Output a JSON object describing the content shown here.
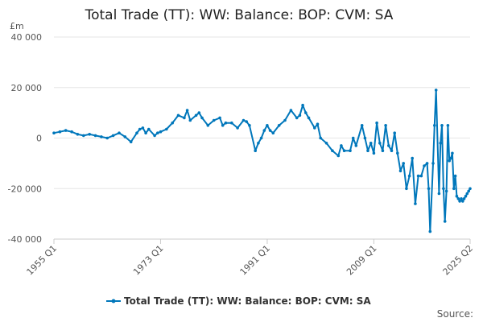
{
  "chart_data": {
    "type": "line",
    "title": "Total Trade (TT): WW: Balance: BOP: CVM: SA",
    "unit_label": "£m",
    "ylim": [
      -40000,
      40000
    ],
    "y_ticks": [
      40000,
      20000,
      0,
      -20000,
      -40000
    ],
    "y_tick_labels": [
      "40 000",
      "20 000",
      "0",
      "-20 000",
      "-40 000"
    ],
    "x_range": [
      1955.0,
      2025.25
    ],
    "x_ticks": [
      1955.0,
      1973.0,
      1991.0,
      2009.0,
      2025.25
    ],
    "x_tick_labels": [
      "1955 Q1",
      "1973 Q1",
      "1991 Q1",
      "2009 Q1",
      "2025 Q2"
    ],
    "grid": true,
    "legend_position": "bottom-center",
    "series": [
      {
        "name": "Total Trade (TT): WW: Balance: BOP: CVM: SA",
        "color": "#0077bb",
        "x": [
          1955.0,
          1956.0,
          1957.0,
          1958.0,
          1959.0,
          1960.0,
          1961.0,
          1962.0,
          1963.0,
          1964.0,
          1965.0,
          1966.0,
          1967.0,
          1968.0,
          1969.0,
          1969.5,
          1970.0,
          1970.5,
          1971.0,
          1972.0,
          1972.5,
          1973.0,
          1974.0,
          1975.0,
          1976.0,
          1977.0,
          1977.5,
          1978.0,
          1979.0,
          1979.5,
          1980.0,
          1981.0,
          1982.0,
          1983.0,
          1983.5,
          1984.0,
          1985.0,
          1986.0,
          1987.0,
          1987.5,
          1988.0,
          1989.0,
          1989.5,
          1990.0,
          1990.5,
          1991.0,
          1991.5,
          1992.0,
          1993.0,
          1994.0,
          1995.0,
          1996.0,
          1996.5,
          1997.0,
          1997.5,
          1998.0,
          1999.0,
          1999.5,
          2000.0,
          2001.0,
          2002.0,
          2003.0,
          2003.5,
          2004.0,
          2005.0,
          2005.5,
          2006.0,
          2007.0,
          2007.5,
          2008.0,
          2008.5,
          2009.0,
          2009.5,
          2010.0,
          2010.5,
          2011.0,
          2011.5,
          2012.0,
          2012.5,
          2013.0,
          2013.5,
          2014.0,
          2014.5,
          2015.0,
          2015.5,
          2016.0,
          2016.5,
          2017.0,
          2017.5,
          2018.0,
          2018.25,
          2018.5,
          2019.0,
          2019.25,
          2019.5,
          2020.0,
          2020.25,
          2020.5,
          2020.75,
          2021.0,
          2021.25,
          2021.5,
          2021.75,
          2022.0,
          2022.25,
          2022.5,
          2022.75,
          2023.0,
          2023.25,
          2023.5,
          2023.75,
          2024.0,
          2024.25,
          2024.5,
          2024.75,
          2025.0,
          2025.25
        ],
        "values": [
          2000,
          2500,
          3000,
          2500,
          1500,
          1000,
          1500,
          1000,
          500,
          0,
          1000,
          2000,
          500,
          -1500,
          2000,
          3500,
          4000,
          2000,
          3500,
          1000,
          2000,
          2500,
          3500,
          6000,
          9000,
          8000,
          11000,
          7000,
          9000,
          10000,
          8000,
          5000,
          7000,
          8000,
          5000,
          6000,
          6000,
          4000,
          7000,
          6500,
          5000,
          -5000,
          -2000,
          0,
          3000,
          5000,
          3000,
          2000,
          5000,
          7000,
          11000,
          8000,
          9000,
          13000,
          10000,
          8000,
          4000,
          5500,
          0,
          -2000,
          -5000,
          -7000,
          -3000,
          -5000,
          -5000,
          0,
          -3000,
          5000,
          0,
          -5000,
          -2000,
          -6000,
          6000,
          -2000,
          -5000,
          5000,
          -3000,
          -5000,
          2000,
          -6000,
          -13000,
          -10000,
          -20000,
          -15000,
          -8000,
          -26000,
          -15000,
          -15000,
          -11000,
          -10000,
          -20000,
          -37000,
          -10000,
          5000,
          19000,
          -22000,
          -2000,
          5000,
          -20000,
          -33000,
          -21000,
          5000,
          -9000,
          -8000,
          -6000,
          -20000,
          -15000,
          -23000,
          -24000,
          -25000,
          -24000,
          -25000,
          -24000,
          -23000,
          -22000,
          -21000,
          -20000
        ]
      }
    ],
    "source_label": "Source:"
  }
}
